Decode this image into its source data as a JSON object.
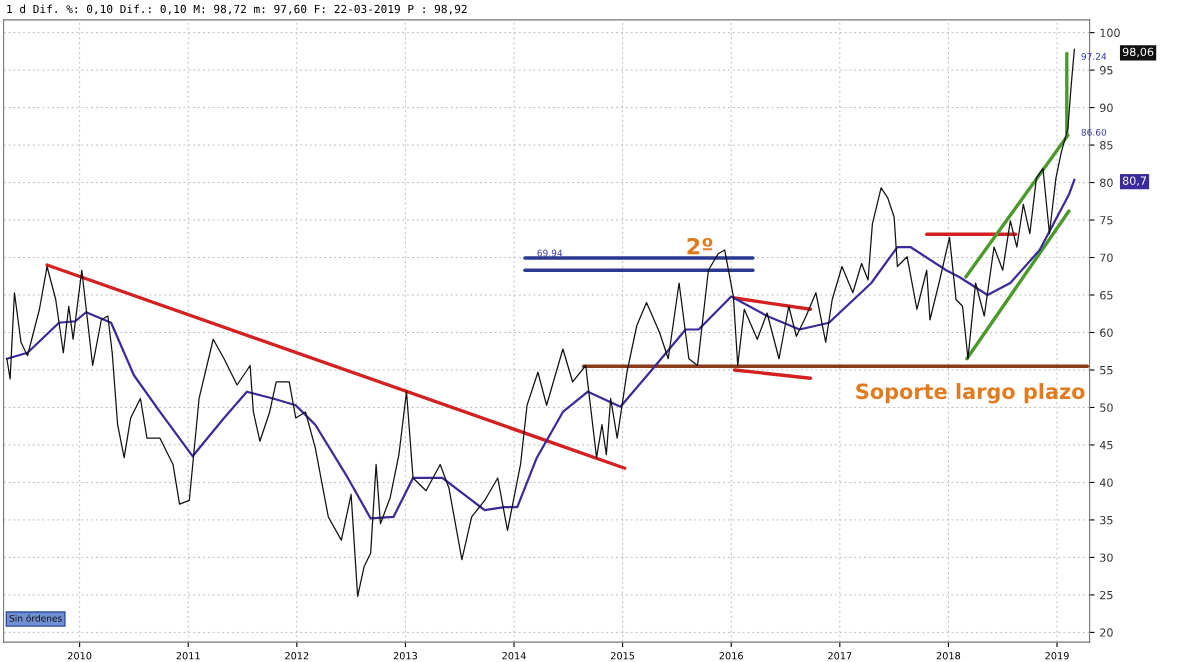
{
  "chart_data": {
    "type": "line",
    "subtitle": "1 d Dif. %: 0,10 Dif.: 0,10 M: 98,72 m: 97,60 F: 22-03-2019 P : 98,92",
    "xlim": [
      2009.3,
      2019.3
    ],
    "xticks": [
      2010,
      2011,
      2012,
      2013,
      2014,
      2015,
      2016,
      2017,
      2018,
      2019
    ],
    "ylim": [
      18.7,
      101.7
    ],
    "yticks": [
      20,
      25,
      30,
      35,
      40,
      45,
      50,
      55,
      60,
      65,
      70,
      75,
      80,
      85,
      90,
      95,
      100
    ],
    "grid": true,
    "series": [
      {
        "color": "#111111",
        "x": [
          2009.33,
          2009.36,
          2009.4,
          2009.46,
          2009.52,
          2009.63,
          2009.7,
          2009.78,
          2009.85,
          2009.9,
          2009.94,
          2010.02,
          2010.12,
          2010.2,
          2010.26,
          2010.3,
          2010.35,
          2010.41,
          2010.47,
          2010.56,
          2010.62,
          2010.74,
          2010.86,
          2010.92,
          2011.01,
          2011.1,
          2011.23,
          2011.33,
          2011.45,
          2011.57,
          2011.6,
          2011.66,
          2011.75,
          2011.81,
          2011.93,
          2011.99,
          2012.08,
          2012.17,
          2012.29,
          2012.41,
          2012.5,
          2012.56,
          2012.62,
          2012.68,
          2012.73,
          2012.77,
          2012.86,
          2012.94,
          2013.01,
          2013.07,
          2013.19,
          2013.32,
          2013.4,
          2013.52,
          2013.61,
          2013.73,
          2013.85,
          2013.94,
          2014.06,
          2014.12,
          2014.22,
          2014.3,
          2014.45,
          2014.54,
          2014.66,
          2014.76,
          2014.81,
          2014.85,
          2014.89,
          2014.95,
          2015.04,
          2015.13,
          2015.22,
          2015.34,
          2015.42,
          2015.52,
          2015.61,
          2015.69,
          2015.79,
          2015.88,
          2015.94,
          2016.02,
          2016.06,
          2016.12,
          2016.24,
          2016.33,
          2016.44,
          2016.53,
          2016.6,
          2016.69,
          2016.78,
          2016.87,
          2016.93,
          2017.02,
          2017.12,
          2017.2,
          2017.26,
          2017.3,
          2017.38,
          2017.44,
          2017.5,
          2017.53,
          2017.62,
          2017.71,
          2017.8,
          2017.83,
          2017.92,
          2018.01,
          2018.07,
          2018.13,
          2018.18,
          2018.25,
          2018.33,
          2018.42,
          2018.5,
          2018.57,
          2018.63,
          2018.69,
          2018.75,
          2018.81,
          2018.87,
          2018.93,
          2018.99,
          2019.04,
          2019.1,
          2019.13,
          2019.16
        ],
        "values": [
          56.5,
          53.8,
          65.3,
          58.7,
          56.9,
          63.1,
          68.8,
          64.4,
          57.3,
          63.5,
          59.1,
          68.3,
          55.6,
          61.7,
          62.2,
          57.3,
          47.7,
          43.3,
          48.6,
          51.2,
          45.9,
          45.9,
          42.4,
          37.1,
          37.6,
          51.2,
          59.1,
          56.5,
          53.0,
          55.6,
          49.4,
          45.5,
          49.4,
          53.4,
          53.4,
          48.6,
          49.4,
          44.6,
          35.4,
          32.3,
          38.4,
          24.8,
          28.8,
          30.6,
          42.4,
          34.5,
          38.0,
          43.7,
          52.1,
          40.6,
          38.9,
          42.4,
          39.3,
          29.7,
          35.4,
          37.6,
          40.6,
          33.6,
          42.4,
          50.3,
          54.7,
          50.3,
          57.8,
          53.4,
          55.6,
          43.3,
          47.7,
          43.7,
          51.2,
          45.9,
          54.7,
          60.9,
          64.0,
          60.0,
          56.5,
          66.6,
          56.5,
          55.6,
          68.3,
          70.5,
          71.0,
          64.8,
          55.6,
          63.1,
          59.1,
          62.6,
          56.5,
          63.5,
          59.5,
          62.2,
          65.3,
          58.7,
          64.4,
          68.8,
          65.3,
          69.2,
          67.0,
          74.5,
          79.3,
          78.0,
          75.4,
          68.8,
          70.1,
          63.1,
          68.3,
          61.7,
          67.0,
          72.7,
          64.4,
          63.5,
          56.5,
          66.6,
          62.2,
          71.4,
          68.3,
          74.9,
          71.4,
          77.1,
          73.2,
          80.6,
          81.9,
          73.2,
          80.6,
          84.1,
          87.2,
          92.9,
          97.8
        ]
      },
      {
        "color": "#3a2a9a",
        "x": [
          2009.33,
          2009.52,
          2009.81,
          2009.96,
          2010.06,
          2010.29,
          2010.5,
          2010.74,
          2011.04,
          2011.33,
          2011.54,
          2011.78,
          2011.99,
          2012.17,
          2012.47,
          2012.68,
          2012.89,
          2013.07,
          2013.34,
          2013.73,
          2013.91,
          2014.03,
          2014.21,
          2014.45,
          2014.68,
          2014.98,
          2015.28,
          2015.58,
          2015.7,
          2016.0,
          2016.33,
          2016.63,
          2016.9,
          2017.29,
          2017.53,
          2017.65,
          2017.98,
          2018.1,
          2018.36,
          2018.57,
          2018.84,
          2019.11,
          2019.16
        ],
        "values": [
          56.5,
          57.3,
          61.3,
          61.5,
          62.7,
          61.3,
          54.3,
          49.4,
          43.5,
          48.6,
          52.1,
          51.2,
          50.3,
          47.7,
          40.6,
          35.2,
          35.4,
          40.6,
          40.6,
          36.3,
          36.7,
          36.7,
          43.3,
          49.4,
          52.1,
          50.1,
          55.2,
          60.4,
          60.4,
          64.8,
          62.2,
          60.4,
          61.3,
          66.6,
          71.4,
          71.4,
          68.3,
          67.4,
          65.0,
          66.6,
          71.0,
          78.4,
          80.4
        ]
      },
      {
        "color": "#d42020",
        "x": [
          2009.7,
          2015.02
        ],
        "values": [
          69.0,
          41.9
        ]
      },
      {
        "color": "#d42020",
        "x": [
          2016.03,
          2016.73
        ],
        "values": [
          64.6,
          63.1
        ]
      },
      {
        "color": "#d42020",
        "x": [
          2016.03,
          2016.73
        ],
        "values": [
          55.0,
          53.9
        ]
      },
      {
        "color": "#d42020",
        "x": [
          2017.8,
          2018.62
        ],
        "values": [
          73.1,
          73.1
        ]
      },
      {
        "color": "#8b3a1a",
        "x": [
          2014.64,
          2019.28
        ],
        "values": [
          55.5,
          55.5
        ]
      },
      {
        "color": "#2a3a8f",
        "x": [
          2014.1,
          2016.2
        ],
        "values": [
          69.94,
          69.94
        ]
      },
      {
        "color": "#2a3a8f",
        "x": [
          2014.1,
          2016.2
        ],
        "values": [
          68.3,
          68.3
        ]
      },
      {
        "color": "#4a9a2a",
        "x": [
          2018.16,
          2019.1
        ],
        "values": [
          67.4,
          86.3
        ]
      },
      {
        "color": "#4a9a2a",
        "x": [
          2018.17,
          2019.11
        ],
        "values": [
          56.5,
          76.2
        ]
      },
      {
        "color": "#4a9a2a",
        "x": [
          2019.09,
          2019.09
        ],
        "values": [
          86.6,
          97.24
        ]
      }
    ],
    "annotations": [
      "2º",
      "Soporte largo plazo",
      "69.94",
      "97.24",
      "86.60",
      "98,06",
      "80,7",
      "Sin órdenes"
    ]
  }
}
